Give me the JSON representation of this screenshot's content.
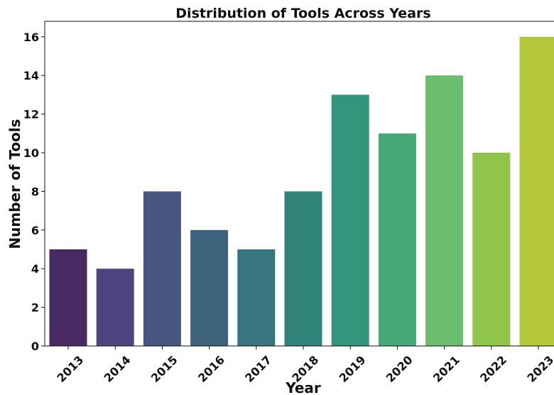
{
  "chart_data": {
    "type": "bar",
    "title": "Distribution of Tools Across Years",
    "xlabel": "Year",
    "ylabel": "Number of Tools",
    "categories": [
      "2013",
      "2014",
      "2015",
      "2016",
      "2017",
      "2018",
      "2019",
      "2020",
      "2021",
      "2022",
      "2023"
    ],
    "values": [
      5,
      4,
      8,
      6,
      5,
      8,
      13,
      11,
      14,
      10,
      16
    ],
    "colors": [
      "#482a62",
      "#4e4580",
      "#46567f",
      "#3f627c",
      "#37757f",
      "#2f8379",
      "#33967c",
      "#45a876",
      "#69bd6c",
      "#8fc54b",
      "#b4c63a"
    ],
    "ylim": [
      0,
      16.8
    ],
    "yticks": [
      0,
      2,
      4,
      6,
      8,
      10,
      12,
      14,
      16
    ],
    "grid": false,
    "legend": "none"
  }
}
